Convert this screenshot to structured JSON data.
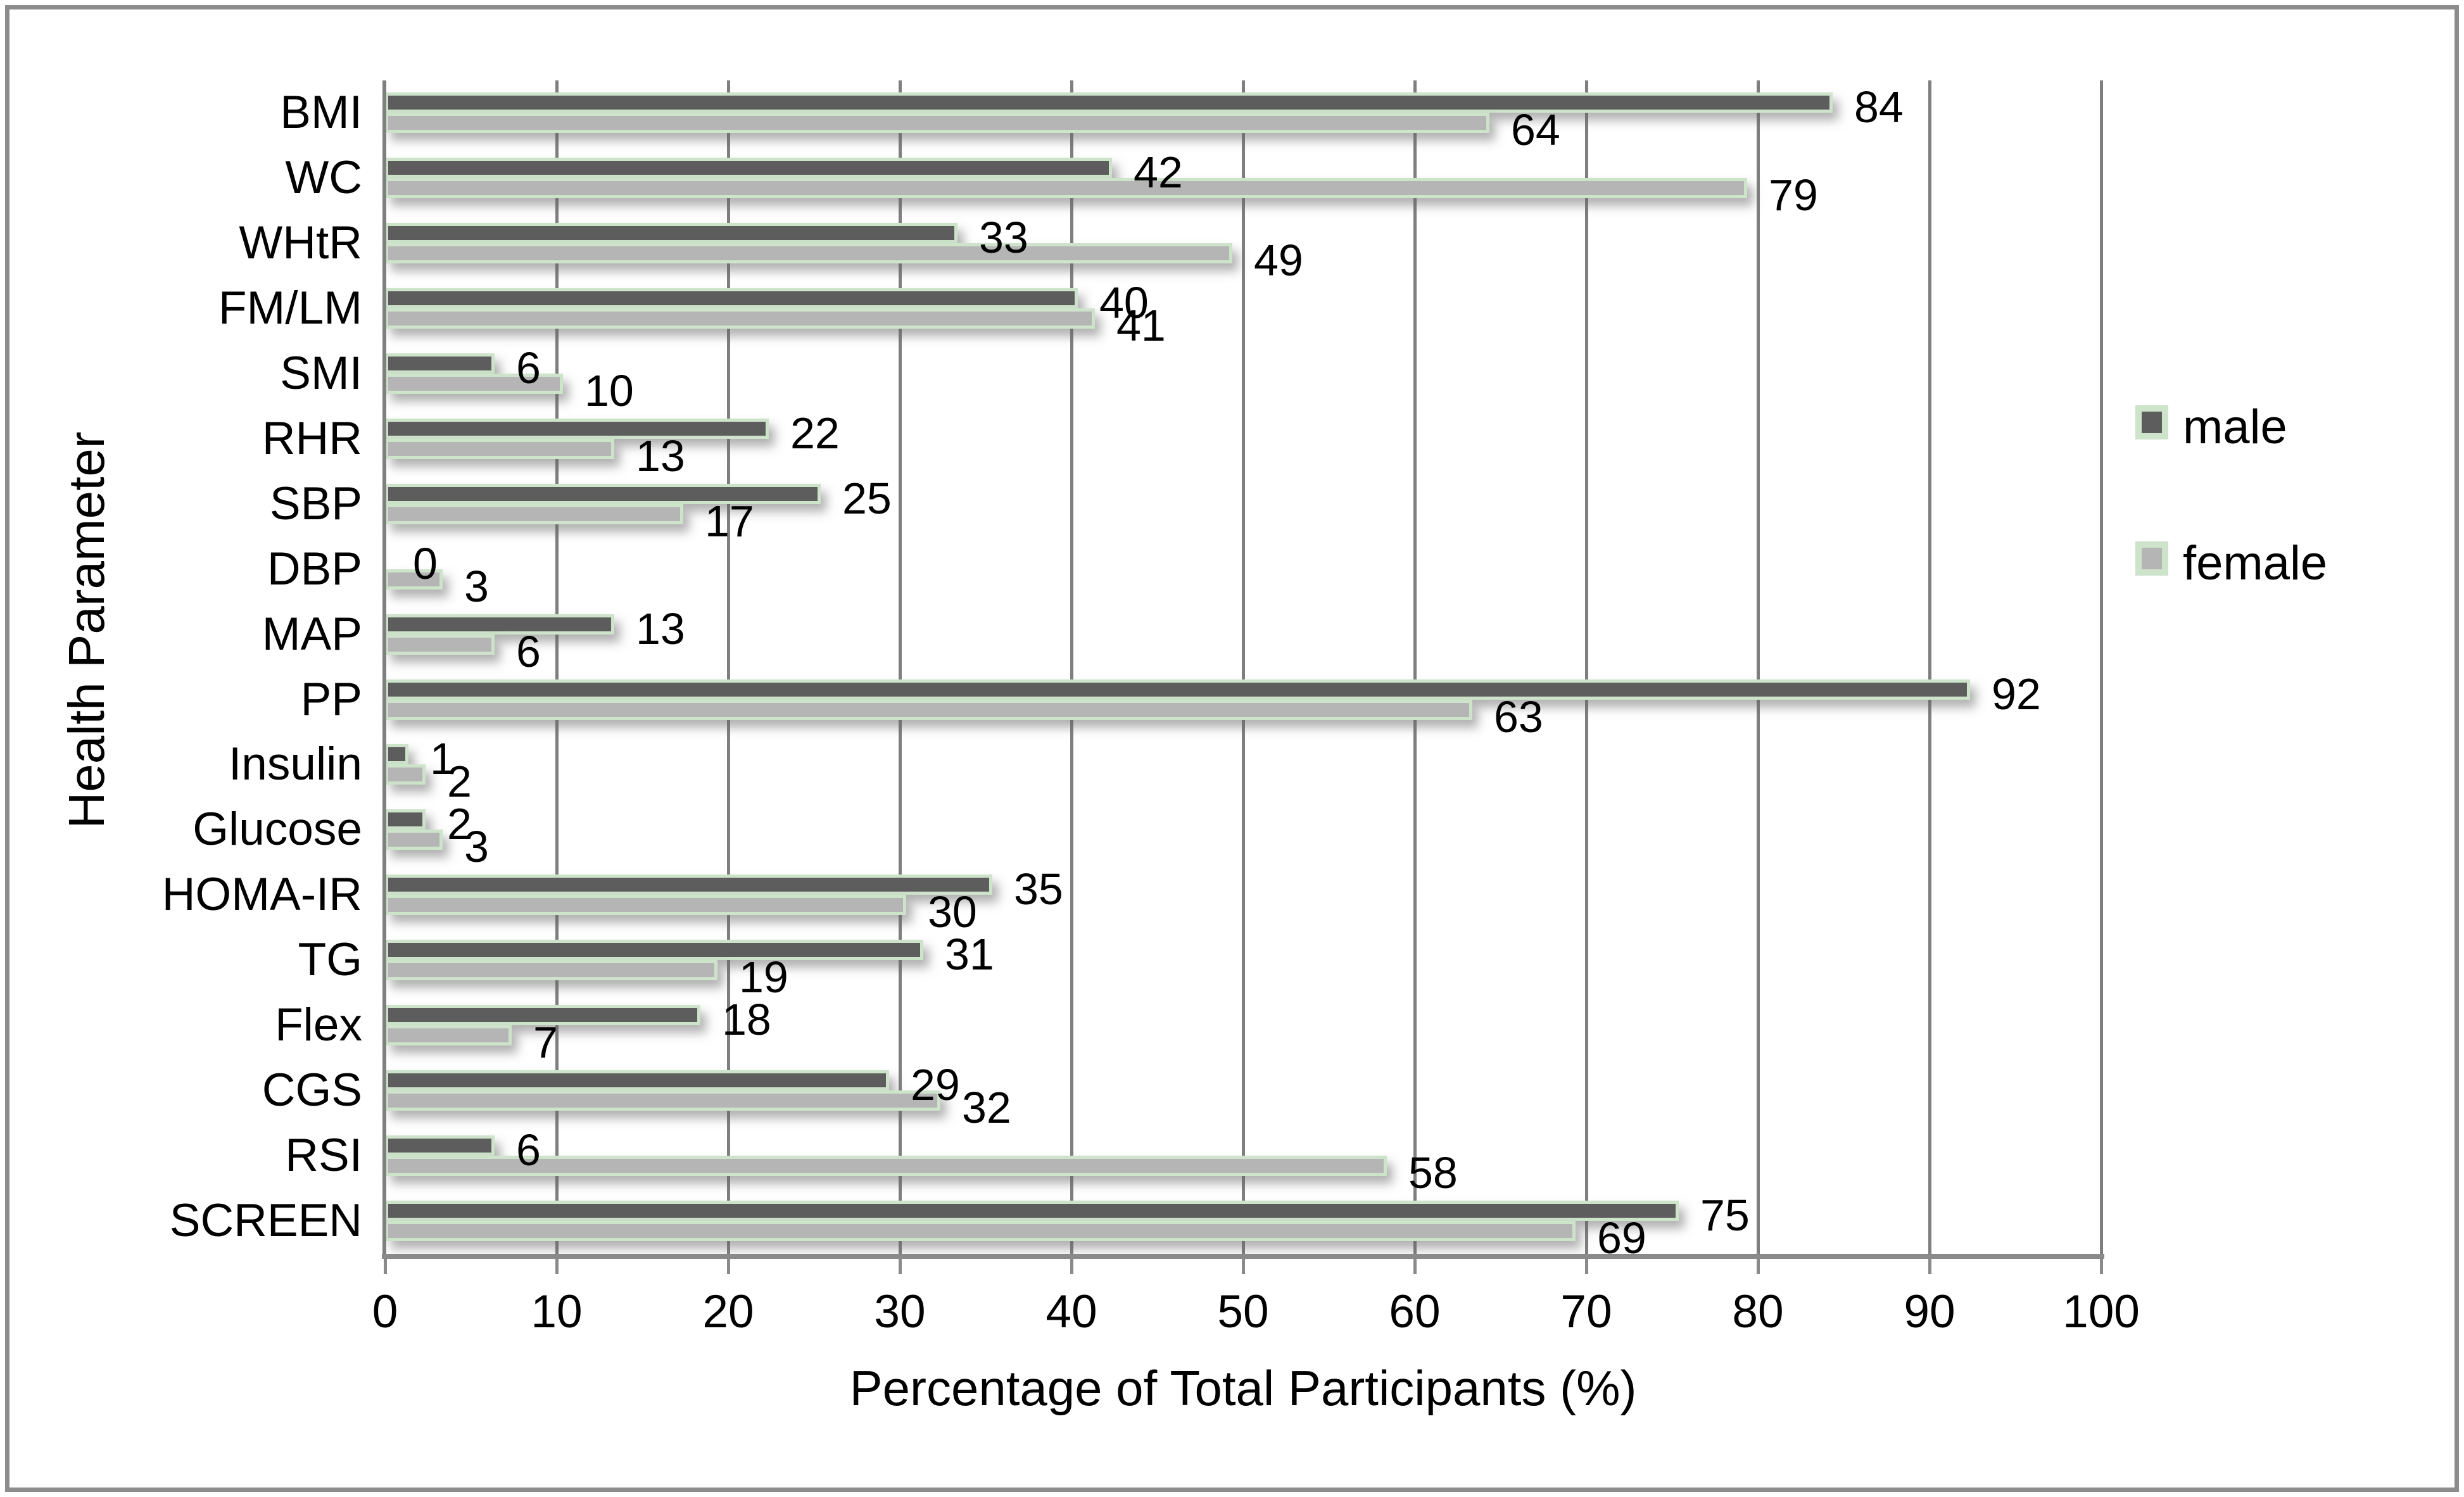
{
  "figure": {
    "background": "#ffffff",
    "border_color": "#8c8c8c"
  },
  "legend": {
    "position": "right",
    "items": [
      {
        "label": "male",
        "color": "#5d5d5d"
      },
      {
        "label": "female",
        "color": "#b5b5b5"
      }
    ],
    "swatch_border_color": "#cde3ca"
  },
  "chart_data": {
    "type": "bar",
    "orientation": "horizontal",
    "title": "",
    "xlabel": "Percentage of Total Participants (%)",
    "ylabel": "Health Parameter",
    "xlim": [
      0,
      100
    ],
    "xticks": [
      0,
      10,
      20,
      30,
      40,
      50,
      60,
      70,
      80,
      90,
      100
    ],
    "grid": "vertical",
    "gridline_color": "#7f7f7f",
    "bar_border_color": "#cde3ca",
    "value_labels": true,
    "legend_position": "right",
    "categories": [
      "BMI",
      "WC",
      "WHtR",
      "FM/LM",
      "SMI",
      "RHR",
      "SBP",
      "DBP",
      "MAP",
      "PP",
      "Insulin",
      "Glucose",
      "HOMA-IR",
      "TG",
      "Flex",
      "CGS",
      "RSI",
      "SCREEN"
    ],
    "series": [
      {
        "name": "male",
        "color": "#5d5d5d",
        "values": [
          84,
          42,
          33,
          40,
          6,
          22,
          25,
          0,
          13,
          92,
          1,
          2,
          35,
          31,
          18,
          29,
          6,
          75
        ]
      },
      {
        "name": "female",
        "color": "#b5b5b5",
        "values": [
          64,
          79,
          49,
          41,
          10,
          13,
          17,
          3,
          6,
          63,
          2,
          3,
          30,
          19,
          7,
          32,
          58,
          69
        ]
      }
    ]
  }
}
